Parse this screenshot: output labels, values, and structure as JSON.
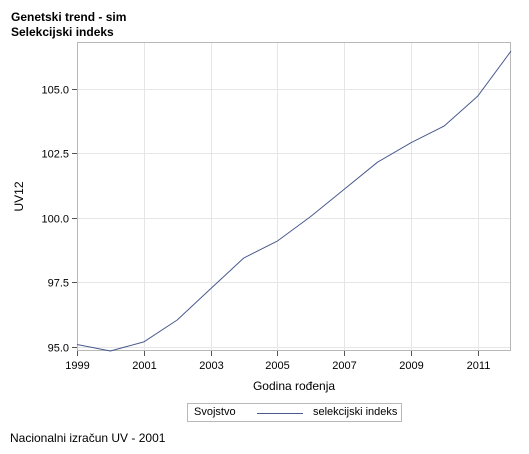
{
  "titles": {
    "line1": "Genetski trend - sim",
    "line2": "Selekcijski indeks"
  },
  "chart_data": {
    "type": "line",
    "xlabel": "Godina rođenja",
    "ylabel": "UV12",
    "xlim": [
      1999,
      2012
    ],
    "ylim": [
      94.85,
      106.8
    ],
    "xticks": [
      1999,
      2001,
      2003,
      2005,
      2007,
      2009,
      2011
    ],
    "yticks": [
      95.0,
      97.5,
      100.0,
      102.5,
      105.0
    ],
    "xtick_labels": [
      "1999",
      "2001",
      "2003",
      "2005",
      "2007",
      "2009",
      "2011"
    ],
    "ytick_labels": [
      "95.0",
      "97.5",
      "100.0",
      "102.5",
      "105.0"
    ],
    "grid": true,
    "legend_position": "bottom",
    "legend_title": "Svojstvo",
    "series": [
      {
        "name": "selekcijski indeks",
        "color": "#4a5a8f",
        "x": [
          1999,
          2000,
          2001,
          2002,
          2003,
          2004,
          2005,
          2006,
          2007,
          2008,
          2009,
          2010,
          2011,
          2012
        ],
        "y": [
          95.1,
          94.85,
          95.2,
          96.05,
          97.25,
          98.45,
          99.1,
          100.05,
          101.1,
          102.15,
          102.9,
          103.55,
          104.7,
          106.45
        ]
      }
    ]
  },
  "footnote": "Nacionalni izračun UV - 2001"
}
